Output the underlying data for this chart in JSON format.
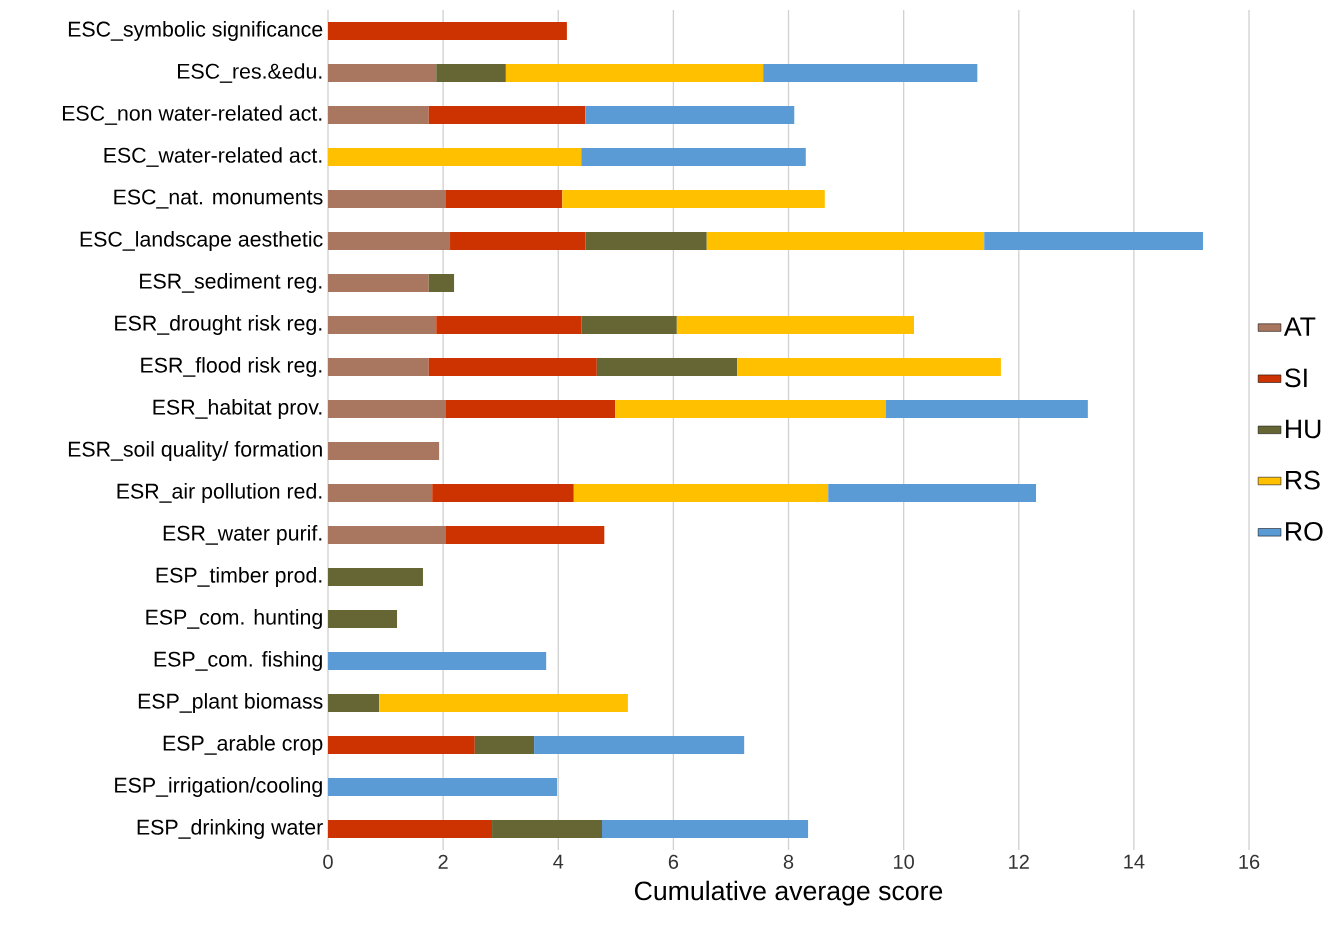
{
  "chart_data": {
    "type": "bar",
    "orientation": "horizontal",
    "stacked": true,
    "xlabel": "Cumulative average score",
    "categories": [
      "ESC_symbolic significance",
      "ESC_res.&edu.",
      "ESC_non water-related act.",
      "ESC_water-related act.",
      "ESC_nat. monuments",
      "ESC_landscape aesthetic",
      "ESR_sediment reg.",
      "ESR_drought risk reg.",
      "ESR_flood risk reg.",
      "ESR_habitat prov.",
      "ESR_soil quality/ formation",
      "ESR_air pollution red.",
      "ESR_water purif.",
      "ESP_timber prod.",
      "ESP_com. hunting",
      "ESP_com. fishing",
      "ESP_plant biomass",
      "ESP_arable crop",
      "ESP_irrigation/cooling",
      "ESP_drinking water"
    ],
    "series": [
      {
        "name": "AT",
        "color": "#a9775f",
        "values": [
          null,
          1.88,
          1.75,
          null,
          2.05,
          2.12,
          1.75,
          1.88,
          1.75,
          2.05,
          1.93,
          1.81,
          2.05,
          null,
          null,
          null,
          null,
          null,
          null,
          null
        ]
      },
      {
        "name": "SI",
        "color": "#cc3300",
        "values": [
          4.15,
          null,
          2.72,
          null,
          2.02,
          2.35,
          null,
          2.52,
          2.92,
          2.94,
          null,
          2.46,
          2.75,
          null,
          null,
          null,
          null,
          2.55,
          null,
          2.85
        ]
      },
      {
        "name": "HU",
        "color": "#656633",
        "values": [
          null,
          1.21,
          null,
          null,
          null,
          2.11,
          0.44,
          1.66,
          2.44,
          null,
          null,
          null,
          null,
          1.65,
          1.2,
          null,
          0.89,
          1.03,
          null,
          1.91
        ]
      },
      {
        "name": "RS",
        "color": "#ffc000",
        "values": [
          null,
          4.47,
          null,
          4.4,
          4.56,
          4.82,
          null,
          4.12,
          4.58,
          4.7,
          null,
          4.42,
          null,
          null,
          null,
          null,
          4.32,
          null,
          null,
          null
        ]
      },
      {
        "name": "RO",
        "color": "#5b9bd5",
        "values": [
          null,
          3.72,
          3.63,
          3.9,
          null,
          3.8,
          null,
          null,
          null,
          3.51,
          null,
          3.61,
          null,
          null,
          null,
          3.79,
          null,
          3.65,
          3.98,
          3.58
        ]
      }
    ],
    "xlim": [
      0,
      16
    ],
    "xticks": [
      0,
      2,
      4,
      6,
      8,
      10,
      12,
      14,
      16
    ],
    "grid": "x",
    "legend": "right"
  }
}
